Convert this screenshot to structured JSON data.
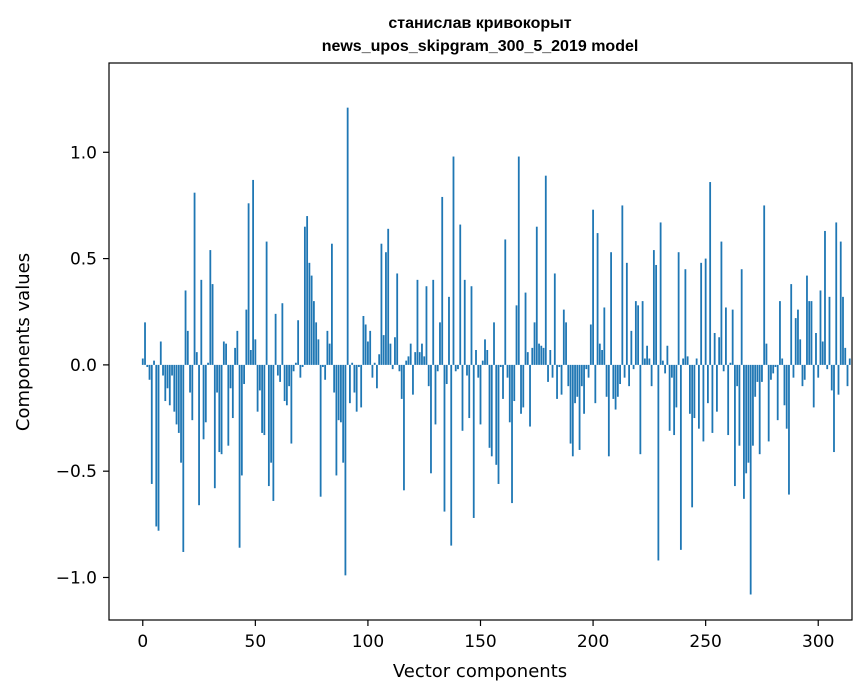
{
  "chart_data": {
    "type": "bar",
    "title": "станислав кривокорыт",
    "subtitle": "news_upos_skipgram_300_5_2019 model",
    "xlabel": "Vector components",
    "ylabel": "Components values",
    "xlim": [
      -15,
      315
    ],
    "ylim": [
      -1.2,
      1.42
    ],
    "xticks": [
      0,
      50,
      100,
      150,
      200,
      250,
      300
    ],
    "xtick_labels": [
      "0",
      "50",
      "100",
      "150",
      "200",
      "250",
      "300"
    ],
    "yticks": [
      -1.0,
      -0.5,
      0.0,
      0.5,
      1.0
    ],
    "ytick_labels": [
      "−1.0",
      "−0.5",
      "0.0",
      "0.5",
      "1.0"
    ],
    "bar_color": "#1f77b4",
    "grid": false,
    "values": [
      0.03,
      0.2,
      -0.01,
      -0.07,
      -0.56,
      0.02,
      -0.76,
      -0.78,
      0.11,
      -0.05,
      -0.17,
      -0.11,
      -0.19,
      -0.05,
      -0.22,
      -0.28,
      -0.32,
      -0.46,
      -0.88,
      0.35,
      0.16,
      -0.13,
      -0.26,
      0.81,
      0.06,
      -0.66,
      0.4,
      -0.35,
      -0.27,
      0.01,
      0.54,
      0.38,
      -0.58,
      -0.13,
      -0.41,
      -0.42,
      0.11,
      0.1,
      -0.38,
      -0.11,
      -0.25,
      0.08,
      0.16,
      -0.86,
      -0.52,
      -0.09,
      0.26,
      0.76,
      0.07,
      0.87,
      0.12,
      -0.22,
      -0.12,
      -0.32,
      -0.33,
      0.58,
      -0.57,
      -0.46,
      -0.64,
      0.24,
      -0.05,
      -0.08,
      0.29,
      -0.17,
      -0.19,
      -0.1,
      -0.37,
      -0.03,
      0.01,
      0.21,
      -0.06,
      -0.01,
      0.65,
      0.7,
      0.48,
      0.42,
      0.3,
      0.2,
      0.12,
      -0.62,
      -0.01,
      -0.07,
      0.16,
      0.1,
      0.57,
      -0.13,
      -0.52,
      -0.26,
      -0.27,
      -0.46,
      -0.99,
      1.21,
      -0.18,
      0.01,
      -0.13,
      -0.22,
      -0.01,
      -0.2,
      0.23,
      0.19,
      0.11,
      0.16,
      -0.06,
      0.01,
      -0.11,
      0.05,
      0.57,
      0.14,
      0.53,
      0.64,
      0.1,
      -0.02,
      0.13,
      0.43,
      -0.03,
      -0.16,
      -0.59,
      0.02,
      0.04,
      0.1,
      -0.14,
      0.06,
      0.4,
      0.06,
      0.1,
      0.04,
      0.37,
      -0.1,
      -0.51,
      0.4,
      -0.28,
      -0.03,
      0.2,
      0.79,
      -0.69,
      -0.09,
      0.32,
      -0.85,
      0.98,
      -0.03,
      -0.02,
      0.66,
      -0.31,
      0.4,
      -0.05,
      -0.25,
      0.37,
      -0.72,
      0.07,
      -0.06,
      -0.28,
      0.02,
      0.12,
      0.07,
      -0.39,
      -0.43,
      0.2,
      -0.47,
      -0.56,
      -0.01,
      -0.16,
      0.59,
      -0.06,
      -0.27,
      -0.65,
      -0.17,
      0.28,
      0.98,
      -0.23,
      -0.2,
      0.34,
      0.06,
      -0.29,
      0.08,
      0.2,
      0.65,
      0.1,
      0.09,
      0.08,
      0.89,
      -0.08,
      0.07,
      -0.06,
      0.43,
      -0.16,
      -0.01,
      -0.14,
      0.26,
      0.2,
      -0.1,
      -0.37,
      -0.43,
      -0.18,
      -0.15,
      -0.4,
      -0.1,
      -0.23,
      -0.02,
      -0.06,
      0.19,
      0.73,
      -0.18,
      0.62,
      0.1,
      0.07,
      0.27,
      -0.15,
      -0.43,
      0.53,
      -0.16,
      -0.21,
      -0.15,
      -0.09,
      0.75,
      -0.06,
      0.48,
      -0.1,
      0.16,
      -0.02,
      0.3,
      0.28,
      -0.42,
      0.3,
      0.03,
      0.09,
      0.03,
      -0.1,
      0.54,
      0.47,
      -0.92,
      0.67,
      0.02,
      -0.04,
      0.09,
      -0.31,
      -0.06,
      -0.33,
      -0.2,
      0.53,
      -0.87,
      0.03,
      0.45,
      0.04,
      -0.23,
      -0.67,
      -0.25,
      0.03,
      -0.3,
      0.48,
      -0.36,
      0.5,
      -0.18,
      0.86,
      -0.32,
      0.15,
      -0.22,
      0.13,
      0.58,
      -0.03,
      0.27,
      -0.33,
      0.01,
      0.26,
      -0.57,
      -0.1,
      -0.38,
      0.45,
      -0.63,
      -0.51,
      -0.46,
      -1.08,
      -0.38,
      -0.15,
      -0.08,
      -0.42,
      -0.08,
      0.75,
      0.1,
      -0.36,
      -0.07,
      -0.04,
      -0.01,
      -0.26,
      0.3,
      0.03,
      -0.19,
      -0.3,
      -0.61,
      0.38,
      -0.06,
      0.22,
      0.26,
      0.12,
      -0.1,
      -0.07,
      0.42,
      0.3,
      0.3,
      -0.2,
      0.15,
      -0.06,
      0.35,
      0.11,
      0.63,
      -0.02,
      0.32,
      -0.12,
      -0.41,
      0.67,
      -0.14,
      0.58,
      0.32,
      0.08,
      -0.1,
      0.03
    ]
  }
}
